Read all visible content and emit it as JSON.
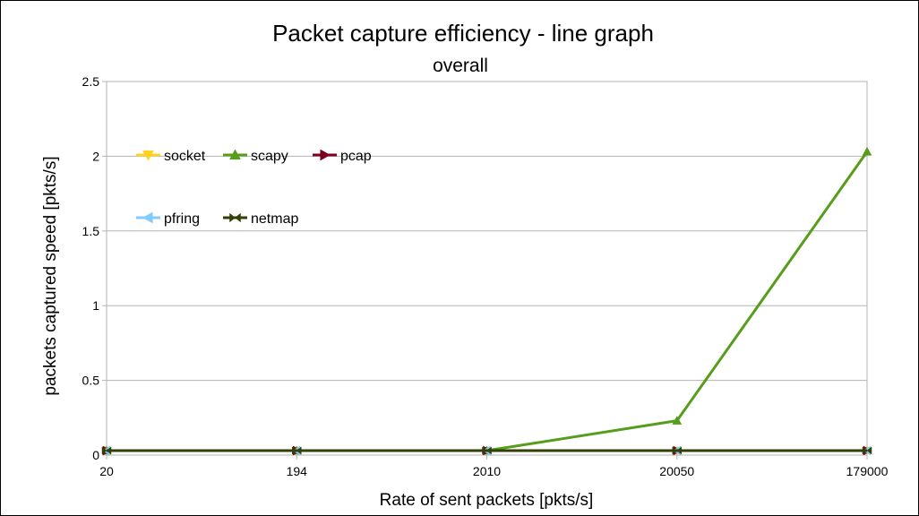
{
  "chart_data": {
    "type": "line",
    "title": "Packet capture efficiency - line graph",
    "subtitle": "overall",
    "xlabel": "Rate of sent packets [pkts/s]",
    "ylabel": "packets captured speed [pkts/s]",
    "categories": [
      "20",
      "194",
      "2010",
      "20050",
      "179000"
    ],
    "ylim": [
      0,
      2.5
    ],
    "yticks": [
      "0",
      "0.5",
      "1",
      "1.5",
      "2",
      "2.5"
    ],
    "grid": true,
    "legend_position": "top-left",
    "series": [
      {
        "name": "socket",
        "values": [
          0.03,
          0.03,
          0.03,
          0.03,
          0.03
        ],
        "color": "#ffd320",
        "marker": "triangle-down"
      },
      {
        "name": "scapy",
        "values": [
          0.03,
          0.03,
          0.03,
          0.23,
          2.03
        ],
        "color": "#579d1c",
        "marker": "triangle-up"
      },
      {
        "name": "pcap",
        "values": [
          0.03,
          0.03,
          0.03,
          0.03,
          0.03
        ],
        "color": "#7e0021",
        "marker": "triangle-right"
      },
      {
        "name": "pfring",
        "values": [
          0.03,
          0.03,
          0.03,
          0.03,
          0.03
        ],
        "color": "#83caff",
        "marker": "triangle-left"
      },
      {
        "name": "netmap",
        "values": [
          0.03,
          0.03,
          0.03,
          0.03,
          0.03
        ],
        "color": "#314004",
        "marker": "bowtie"
      }
    ]
  }
}
